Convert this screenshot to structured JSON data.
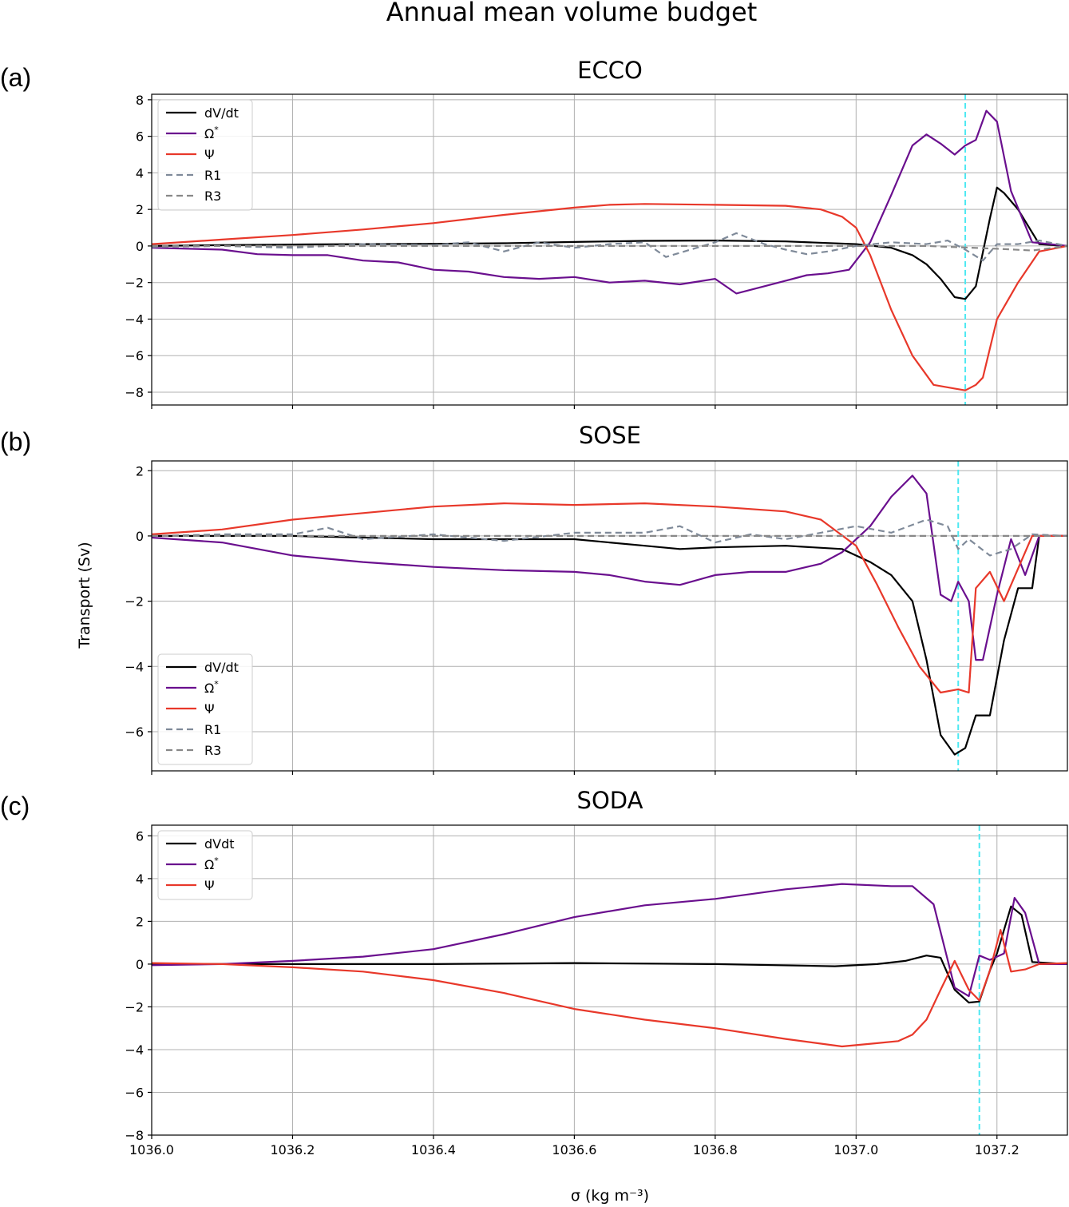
{
  "figure": {
    "suptitle": "Annual mean volume budget",
    "xlabel": "σ (kg m⁻³)",
    "ylabel": "Transport (Sv)",
    "x_ticks": [
      1036.0,
      1036.2,
      1036.4,
      1036.6,
      1036.8,
      1037.0,
      1037.2
    ],
    "x_tick_labels": [
      "1036.0",
      "1036.2",
      "1036.4",
      "1036.6",
      "1036.8",
      "1037.0",
      "1037.2"
    ],
    "colors": {
      "dVdt": "#000000",
      "omega": "#6a0f8e",
      "psi": "#e8382a",
      "R1": "#7f8a99",
      "R3": "#888888",
      "marker": "#4de8f2",
      "grid": "#b0b0b0"
    }
  },
  "chart_data": [
    {
      "panel": "(a)",
      "title": "ECCO",
      "type": "line",
      "xlim": [
        1036.0,
        1037.3
      ],
      "ylim": [
        -8.7,
        8.3
      ],
      "yticks": [
        -8,
        -6,
        -4,
        -2,
        0,
        2,
        4,
        6,
        8
      ],
      "ytick_labels": [
        "−8",
        "−6",
        "−4",
        "−2",
        "0",
        "2",
        "4",
        "6",
        "8"
      ],
      "grid": true,
      "legend_position": "top-left",
      "vline_x": 1037.155,
      "series": [
        {
          "name": "dV/dt",
          "style": "solid",
          "x": [
            1036.0,
            1036.1,
            1036.2,
            1036.3,
            1036.4,
            1036.5,
            1036.6,
            1036.7,
            1036.8,
            1036.9,
            1037.0,
            1037.05,
            1037.08,
            1037.1,
            1037.12,
            1037.14,
            1037.155,
            1037.17,
            1037.19,
            1037.2,
            1037.21,
            1037.23,
            1037.26,
            1037.3
          ],
          "y": [
            0.0,
            0.05,
            0.08,
            0.1,
            0.12,
            0.15,
            0.22,
            0.28,
            0.3,
            0.25,
            0.1,
            -0.1,
            -0.5,
            -1.0,
            -1.8,
            -2.8,
            -2.9,
            -2.2,
            1.5,
            3.2,
            2.9,
            2.0,
            0.1,
            0.0
          ]
        },
        {
          "name": "Ω*",
          "style": "solid",
          "x": [
            1036.0,
            1036.1,
            1036.15,
            1036.2,
            1036.25,
            1036.3,
            1036.35,
            1036.4,
            1036.45,
            1036.5,
            1036.55,
            1036.6,
            1036.65,
            1036.7,
            1036.75,
            1036.8,
            1036.83,
            1036.87,
            1036.9,
            1036.93,
            1036.96,
            1036.99,
            1037.02,
            1037.05,
            1037.08,
            1037.1,
            1037.12,
            1037.14,
            1037.155,
            1037.17,
            1037.185,
            1037.2,
            1037.22,
            1037.25,
            1037.3
          ],
          "y": [
            -0.1,
            -0.2,
            -0.45,
            -0.5,
            -0.5,
            -0.8,
            -0.9,
            -1.3,
            -1.4,
            -1.7,
            -1.8,
            -1.7,
            -2.0,
            -1.9,
            -2.1,
            -1.8,
            -2.6,
            -2.2,
            -1.9,
            -1.6,
            -1.5,
            -1.3,
            0.2,
            2.8,
            5.5,
            6.1,
            5.6,
            5.0,
            5.5,
            5.8,
            7.4,
            6.8,
            3.0,
            0.2,
            0.0
          ]
        },
        {
          "name": "Ψ",
          "style": "solid",
          "x": [
            1036.0,
            1036.1,
            1036.2,
            1036.3,
            1036.4,
            1036.5,
            1036.6,
            1036.65,
            1036.7,
            1036.8,
            1036.9,
            1036.95,
            1036.98,
            1037.0,
            1037.02,
            1037.05,
            1037.08,
            1037.11,
            1037.14,
            1037.155,
            1037.17,
            1037.18,
            1037.2,
            1037.23,
            1037.26,
            1037.3
          ],
          "y": [
            0.1,
            0.35,
            0.6,
            0.9,
            1.25,
            1.7,
            2.1,
            2.25,
            2.3,
            2.25,
            2.2,
            2.0,
            1.6,
            1.0,
            -0.5,
            -3.5,
            -6.0,
            -7.6,
            -7.8,
            -7.9,
            -7.6,
            -7.2,
            -4.0,
            -2.0,
            -0.3,
            0.0
          ]
        },
        {
          "name": "R1",
          "style": "dashed",
          "x": [
            1036.0,
            1036.1,
            1036.2,
            1036.3,
            1036.4,
            1036.45,
            1036.5,
            1036.55,
            1036.6,
            1036.65,
            1036.7,
            1036.73,
            1036.8,
            1036.83,
            1036.87,
            1036.9,
            1036.93,
            1036.96,
            1037.0,
            1037.05,
            1037.1,
            1037.13,
            1037.155,
            1037.18,
            1037.2,
            1037.23,
            1037.26,
            1037.3
          ],
          "y": [
            -0.05,
            0.0,
            -0.1,
            0.1,
            0.05,
            0.2,
            -0.3,
            0.2,
            -0.1,
            0.1,
            0.2,
            -0.6,
            0.2,
            0.7,
            0.1,
            -0.2,
            -0.45,
            -0.3,
            0.0,
            0.2,
            0.1,
            0.3,
            -0.2,
            -0.8,
            0.1,
            0.1,
            0.3,
            0.0
          ]
        },
        {
          "name": "R3",
          "style": "dashed",
          "x": [
            1036.0,
            1036.3,
            1036.6,
            1036.9,
            1037.1,
            1037.2,
            1037.25,
            1037.3
          ],
          "y": [
            0.0,
            0.0,
            0.0,
            0.0,
            0.0,
            -0.15,
            -0.25,
            0.0
          ]
        }
      ]
    },
    {
      "panel": "(b)",
      "title": "SOSE",
      "type": "line",
      "xlim": [
        1036.0,
        1037.3
      ],
      "ylim": [
        -7.2,
        2.3
      ],
      "yticks": [
        -6,
        -4,
        -2,
        0,
        2
      ],
      "ytick_labels": [
        "−6",
        "−4",
        "−2",
        "0",
        "2"
      ],
      "grid": true,
      "legend_position": "bottom-left",
      "vline_x": 1037.145,
      "series": [
        {
          "name": "dV/dt",
          "style": "solid",
          "x": [
            1036.0,
            1036.2,
            1036.4,
            1036.6,
            1036.7,
            1036.75,
            1036.8,
            1036.9,
            1036.98,
            1037.02,
            1037.05,
            1037.08,
            1037.1,
            1037.12,
            1037.14,
            1037.155,
            1037.17,
            1037.19,
            1037.21,
            1037.23,
            1037.25,
            1037.26,
            1037.3
          ],
          "y": [
            0.0,
            0.0,
            -0.1,
            -0.1,
            -0.3,
            -0.4,
            -0.35,
            -0.3,
            -0.4,
            -0.8,
            -1.2,
            -2.0,
            -3.8,
            -6.1,
            -6.7,
            -6.5,
            -5.5,
            -5.5,
            -3.2,
            -1.6,
            -1.6,
            0.0,
            0.0
          ]
        },
        {
          "name": "Ω*",
          "style": "solid",
          "x": [
            1036.0,
            1036.1,
            1036.2,
            1036.3,
            1036.4,
            1036.5,
            1036.6,
            1036.65,
            1036.7,
            1036.75,
            1036.8,
            1036.85,
            1036.9,
            1036.95,
            1036.98,
            1037.02,
            1037.05,
            1037.08,
            1037.1,
            1037.12,
            1037.135,
            1037.145,
            1037.16,
            1037.17,
            1037.18,
            1037.2,
            1037.22,
            1037.24,
            1037.26,
            1037.3
          ],
          "y": [
            -0.05,
            -0.2,
            -0.6,
            -0.8,
            -0.95,
            -1.05,
            -1.1,
            -1.2,
            -1.4,
            -1.5,
            -1.2,
            -1.1,
            -1.1,
            -0.85,
            -0.5,
            0.3,
            1.2,
            1.85,
            1.3,
            -1.8,
            -2.0,
            -1.4,
            -2.0,
            -3.8,
            -3.8,
            -1.8,
            -0.1,
            -1.2,
            0.0,
            0.0
          ]
        },
        {
          "name": "Ψ",
          "style": "solid",
          "x": [
            1036.0,
            1036.1,
            1036.2,
            1036.3,
            1036.4,
            1036.5,
            1036.6,
            1036.7,
            1036.8,
            1036.9,
            1036.95,
            1037.0,
            1037.03,
            1037.06,
            1037.09,
            1037.12,
            1037.145,
            1037.16,
            1037.17,
            1037.19,
            1037.21,
            1037.23,
            1037.25,
            1037.3
          ],
          "y": [
            0.05,
            0.2,
            0.5,
            0.7,
            0.9,
            1.0,
            0.95,
            1.0,
            0.9,
            0.75,
            0.5,
            -0.3,
            -1.5,
            -2.8,
            -4.0,
            -4.8,
            -4.7,
            -4.8,
            -1.6,
            -1.1,
            -2.0,
            -1.0,
            0.0,
            0.0
          ]
        },
        {
          "name": "R1",
          "style": "dashed",
          "x": [
            1036.0,
            1036.1,
            1036.2,
            1036.25,
            1036.3,
            1036.4,
            1036.5,
            1036.6,
            1036.7,
            1036.75,
            1036.8,
            1036.85,
            1036.9,
            1036.95,
            1037.0,
            1037.05,
            1037.1,
            1037.13,
            1037.145,
            1037.16,
            1037.19,
            1037.22,
            1037.25,
            1037.3
          ],
          "y": [
            0.0,
            0.05,
            0.05,
            0.25,
            -0.1,
            0.05,
            -0.15,
            0.1,
            0.1,
            0.3,
            -0.2,
            0.05,
            -0.1,
            0.1,
            0.3,
            0.1,
            0.5,
            0.3,
            -0.4,
            -0.1,
            -0.6,
            -0.4,
            0.05,
            0.0
          ]
        },
        {
          "name": "R3",
          "style": "dashed",
          "x": [
            1036.0,
            1036.3,
            1036.6,
            1036.9,
            1037.1,
            1037.2,
            1037.25,
            1037.3
          ],
          "y": [
            0.0,
            0.0,
            0.0,
            0.0,
            0.0,
            0.0,
            0.0,
            0.0
          ]
        }
      ]
    },
    {
      "panel": "(c)",
      "title": "SODA",
      "type": "line",
      "xlim": [
        1036.0,
        1037.3
      ],
      "ylim": [
        -8.0,
        6.5
      ],
      "yticks": [
        -8,
        -6,
        -4,
        -2,
        0,
        2,
        4,
        6
      ],
      "ytick_labels": [
        "−8",
        "−6",
        "−4",
        "−2",
        "0",
        "2",
        "4",
        "6"
      ],
      "grid": true,
      "legend_position": "top-left",
      "vline_x": 1037.175,
      "series": [
        {
          "name": "dVdt",
          "style": "solid",
          "x": [
            1036.0,
            1036.2,
            1036.4,
            1036.6,
            1036.8,
            1036.97,
            1037.03,
            1037.07,
            1037.1,
            1037.12,
            1037.14,
            1037.16,
            1037.175,
            1037.19,
            1037.2,
            1037.22,
            1037.235,
            1037.25,
            1037.3
          ],
          "y": [
            0.0,
            0.0,
            0.0,
            0.05,
            0.0,
            -0.1,
            0.0,
            0.15,
            0.4,
            0.3,
            -1.2,
            -1.8,
            -1.75,
            -0.3,
            0.5,
            2.7,
            2.3,
            0.1,
            0.0
          ]
        },
        {
          "name": "Ω*",
          "style": "solid",
          "x": [
            1036.0,
            1036.1,
            1036.2,
            1036.3,
            1036.4,
            1036.5,
            1036.6,
            1036.7,
            1036.8,
            1036.9,
            1036.98,
            1037.05,
            1037.08,
            1037.11,
            1037.14,
            1037.16,
            1037.175,
            1037.19,
            1037.21,
            1037.225,
            1037.24,
            1037.26,
            1037.3
          ],
          "y": [
            -0.05,
            0.0,
            0.15,
            0.35,
            0.7,
            1.4,
            2.2,
            2.75,
            3.05,
            3.5,
            3.75,
            3.65,
            3.65,
            2.8,
            -1.1,
            -1.5,
            0.4,
            0.2,
            0.5,
            3.1,
            2.4,
            0.0,
            0.0
          ]
        },
        {
          "name": "Ψ",
          "style": "solid",
          "x": [
            1036.0,
            1036.1,
            1036.2,
            1036.3,
            1036.4,
            1036.5,
            1036.6,
            1036.7,
            1036.8,
            1036.9,
            1036.98,
            1037.03,
            1037.06,
            1037.08,
            1037.1,
            1037.12,
            1037.14,
            1037.16,
            1037.175,
            1037.19,
            1037.205,
            1037.22,
            1037.24,
            1037.26,
            1037.3
          ],
          "y": [
            0.05,
            0.0,
            -0.15,
            -0.35,
            -0.75,
            -1.35,
            -2.1,
            -2.6,
            -3.0,
            -3.5,
            -3.85,
            -3.7,
            -3.6,
            -3.3,
            -2.6,
            -1.2,
            0.15,
            -1.2,
            -1.7,
            -0.3,
            1.6,
            -0.35,
            -0.25,
            0.0,
            0.05
          ]
        }
      ]
    }
  ]
}
